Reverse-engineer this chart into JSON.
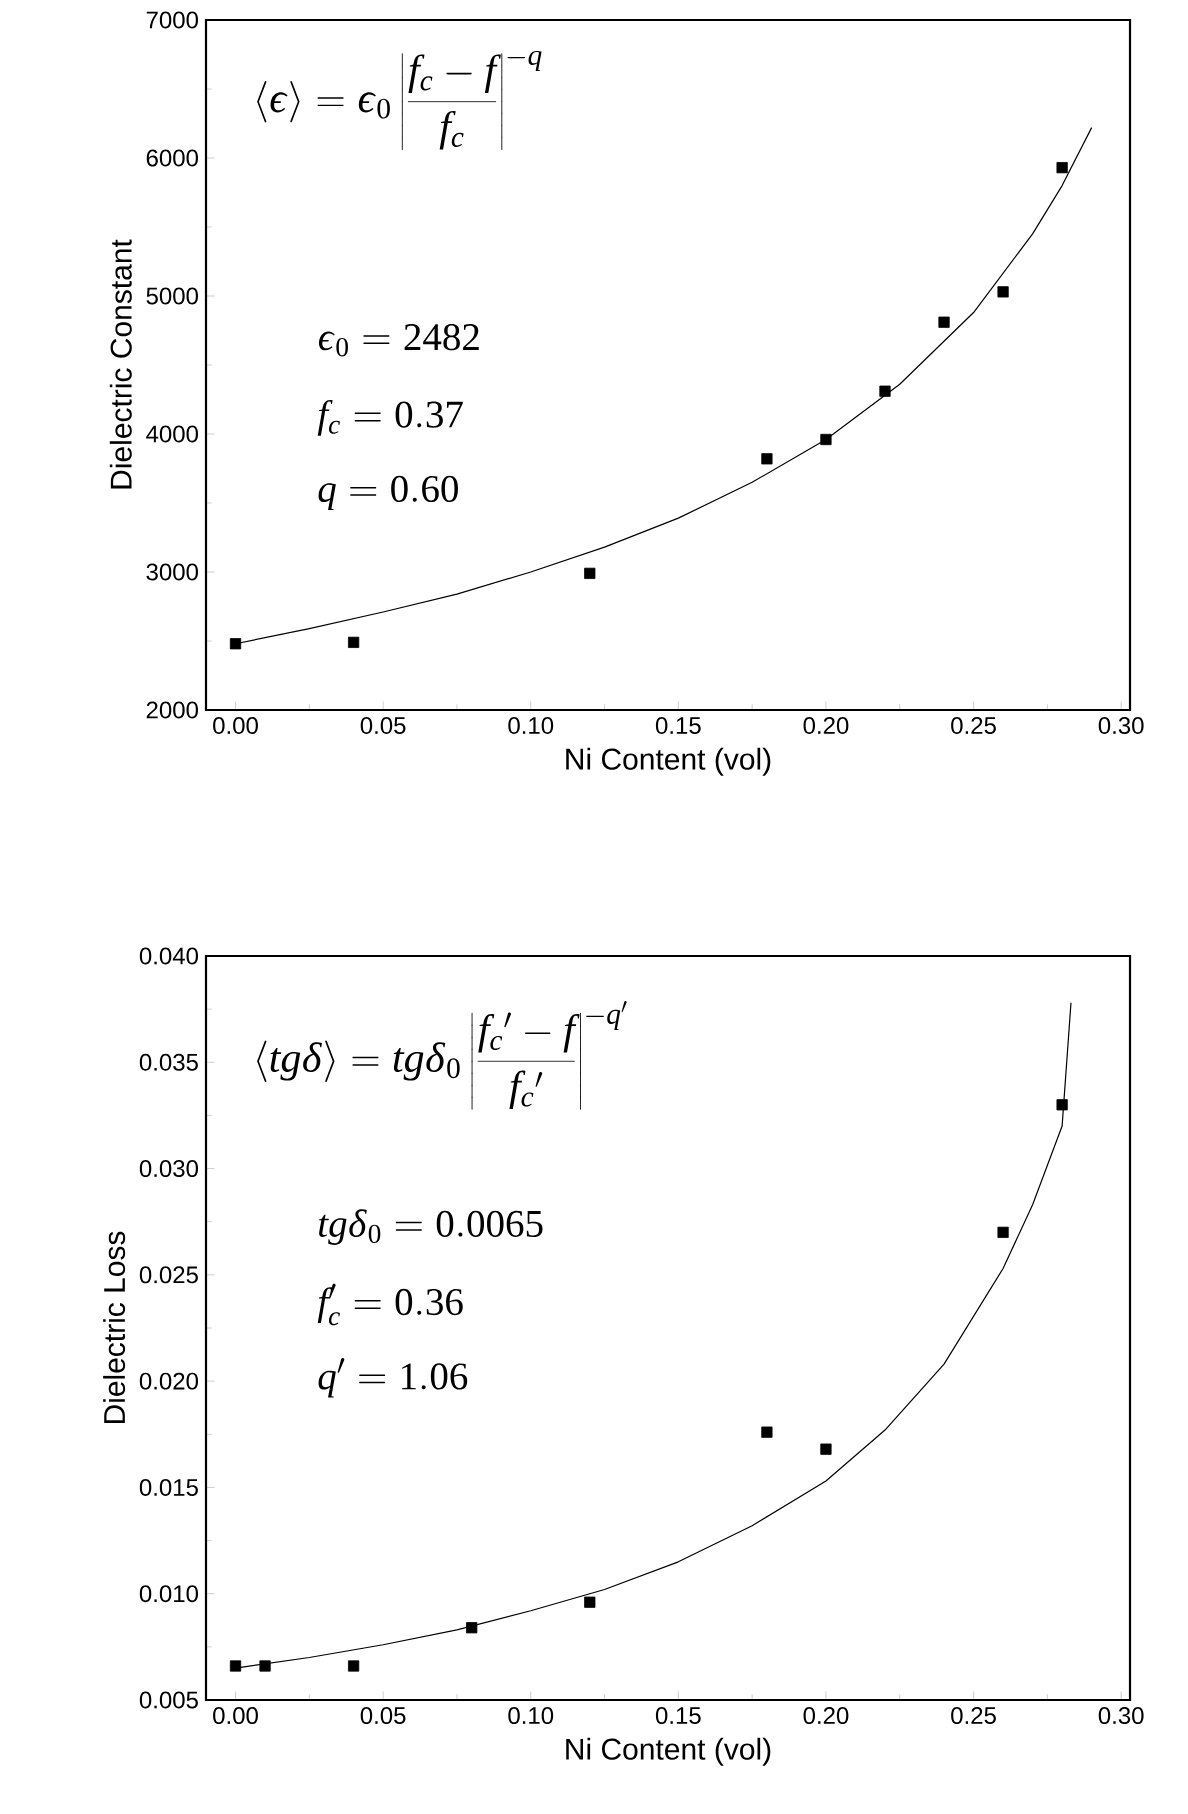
{
  "chart_data": [
    {
      "type": "scatter",
      "xlabel": "Ni Content (vol)",
      "ylabel": "Dielectric Constant",
      "xlim": [
        -0.01,
        0.303
      ],
      "ylim": [
        2000,
        7000
      ],
      "xticks": [
        {
          "value": 0,
          "label": "0.00"
        },
        {
          "value": 0.05,
          "label": "0.05"
        },
        {
          "value": 0.1,
          "label": "0.10"
        },
        {
          "value": 0.15,
          "label": "0.15"
        },
        {
          "value": 0.2,
          "label": "0.20"
        },
        {
          "value": 0.25,
          "label": "0.25"
        },
        {
          "value": 0.3,
          "label": "0.30"
        }
      ],
      "yticks": [
        2000,
        3000,
        4000,
        5000,
        6000,
        7000
      ],
      "annotations": [
        "\\left\\langle \\varepsilon \\right\\rangle = \\varepsilon_0 \\left| \\frac{f_c - f}{f_c} \\right|^{-q}",
        "\\varepsilon_0=2482",
        "f_c=0.37",
        "q=0.60"
      ],
      "series": [
        {
          "color": "#000000",
          "marker": "square",
          "x": [
            0,
            0.04,
            0.12,
            0.18,
            0.2,
            0.22,
            0.24,
            0.26,
            0.28
          ],
          "values": [
            2480,
            2490,
            2990,
            3820,
            3960,
            4310,
            4810,
            5030,
            5930
          ]
        },
        {
          "type": "line",
          "color": "#000000",
          "marker": "none",
          "line_style": "solid",
          "x": [
            0,
            0.025,
            0.05,
            0.075,
            0.1,
            0.125,
            0.15,
            0.175,
            0.2,
            0.225,
            0.25,
            0.27,
            0.28,
            0.29
          ],
          "values": [
            2480,
            2590,
            2710,
            2840,
            3000,
            3180,
            3390,
            3650,
            3960,
            4360,
            4880,
            5450,
            5800,
            6220
          ]
        }
      ]
    },
    {
      "type": "scatter",
      "xlabel": "Ni Content (vol)",
      "ylabel": "Dielectric Loss",
      "xlim": [
        -0.01,
        0.303
      ],
      "ylim": [
        0.005,
        0.04
      ],
      "xticks": [
        {
          "value": 0,
          "label": "0.00"
        },
        {
          "value": 0.05,
          "label": "0.05"
        },
        {
          "value": 0.1,
          "label": "0.10"
        },
        {
          "value": 0.15,
          "label": "0.15"
        },
        {
          "value": 0.2,
          "label": "0.20"
        },
        {
          "value": 0.25,
          "label": "0.25"
        },
        {
          "value": 0.3,
          "label": "0.30"
        }
      ],
      "yticks": [
        0.005,
        {
          "value": 0.01,
          "label": "0.010"
        },
        0.015,
        {
          "value": 0.02,
          "label": "0.020"
        },
        0.025,
        {
          "value": 0.03,
          "label": "0.030"
        },
        0.035,
        {
          "value": 0.04,
          "label": "0.040"
        }
      ],
      "annotations": [
        "\\left\\langle tg\\delta \\right\\rangle = tg\\delta_0 \\left| \\frac{f_c{}' - f}{f_c{}'} \\right|^{-q'}",
        "tg\\delta_0=0.0065",
        "f_c'=0.36",
        "q'=1.06"
      ],
      "series": [
        {
          "color": "#000000",
          "marker": "square",
          "x": [
            0,
            0.01,
            0.04,
            0.08,
            0.12,
            0.18,
            0.2,
            0.26,
            0.28
          ],
          "values": [
            0.0066,
            0.0066,
            0.0066,
            0.0084,
            0.0096,
            0.0176,
            0.0168,
            0.027,
            0.033
          ]
        },
        {
          "type": "line",
          "color": "#000000",
          "marker": "none",
          "line_style": "solid",
          "x": [
            0,
            0.025,
            0.05,
            0.075,
            0.1,
            0.125,
            0.15,
            0.175,
            0.2,
            0.22,
            0.24,
            0.26,
            0.27,
            0.28,
            0.283
          ],
          "values": [
            0.0065,
            0.007,
            0.0076,
            0.0083,
            0.0092,
            0.0102,
            0.0115,
            0.0132,
            0.0153,
            0.0177,
            0.0208,
            0.0253,
            0.0283,
            0.032,
            0.0378
          ]
        }
      ]
    }
  ]
}
